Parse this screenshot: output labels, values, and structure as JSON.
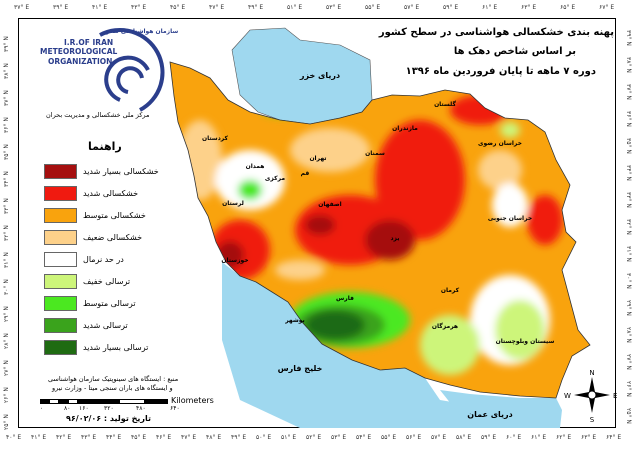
{
  "title": {
    "line1": "پهنه بندی خشکسالی هواشناسی در سطح کشور",
    "line2": "بر اساس شاخص  دهک ها",
    "line3": "دوره ۷ ماهه تا پایان فروردین ماه ۱۳۹۶"
  },
  "logo": {
    "fa_org": "سازمان هواشناسی کشور",
    "en_line1": "I.R.OF IRAN",
    "en_line2": "METEOROLOGICAL",
    "en_line3": "ORGANIZATION",
    "center": "مرکز ملی خشکسالی و مدیریت بحران"
  },
  "legend": {
    "title": "راهنما",
    "items": [
      {
        "label": "خشکسالی بسیار شدید",
        "color": "#a50f0f"
      },
      {
        "label": "خشکسالی شدید",
        "color": "#f01a10"
      },
      {
        "label": "خشکسالی متوسط",
        "color": "#f9a30d"
      },
      {
        "label": "خشکسالی ضعیف",
        "color": "#fdd18a"
      },
      {
        "label": "در حد نرمال",
        "color": "#ffffff"
      },
      {
        "label": "ترسالی خفیف",
        "color": "#cdf57a"
      },
      {
        "label": "ترسالی متوسط",
        "color": "#4be820"
      },
      {
        "label": "ترسالی شدید",
        "color": "#3aa31c"
      },
      {
        "label": "ترسالی بسیار شدید",
        "color": "#1f6b12"
      }
    ]
  },
  "source": {
    "line1": "منبع : ایستگاه های سینوپتیک سازمان هواشناسی",
    "line2": "و ایستگاه های باران سنجی میتا - وزارت نیرو"
  },
  "scale_bar": {
    "unit": "Kilometers",
    "ticks": [
      "۰",
      "۸۰",
      "۱۶۰",
      "۳۲۰",
      "۴۸۰",
      "۶۴۰"
    ]
  },
  "production_date": "تاریخ تولید : ۹۶/۰۲/۰۶",
  "water_labels": {
    "caspian": "دریای خزر",
    "persian_gulf": "خلیج فارس",
    "oman_sea": "دریای عمان"
  },
  "compass": {
    "n": "N",
    "s": "S",
    "e": "E",
    "w": "W"
  },
  "province_labels": [
    "تهران",
    "قم",
    "سمنان",
    "اصفهان",
    "یزد",
    "کرمان",
    "فارس",
    "هرمزگان",
    "بوشهر",
    "خوزستان",
    "همدان",
    "مرکزی",
    "خراسان رضوی",
    "خراسان جنوبی",
    "سیستان وبلوچستان",
    "گلستان",
    "مازندران",
    "کردستان",
    "لرستان"
  ],
  "axes": {
    "top": [
      "۳۷° E",
      "۳۹° E",
      "۴۱° E",
      "۴۳° E",
      "۴۵° E",
      "۴۷° E",
      "۴۹° E",
      "۵۱° E",
      "۵۳° E",
      "۵۵° E",
      "۵۷° E",
      "۵۹° E",
      "۶۱° E",
      "۶۳° E",
      "۶۵° E",
      "۶۷° E"
    ],
    "bottom": [
      "۴۰° E",
      "۴۱° E",
      "۴۲° E",
      "۴۳° E",
      "۴۴° E",
      "۴۵° E",
      "۴۶° E",
      "۴۷° E",
      "۴۸° E",
      "۴۹° E",
      "۵۰° E",
      "۵۱° E",
      "۵۲° E",
      "۵۳° E",
      "۵۴° E",
      "۵۵° E",
      "۵۶° E",
      "۵۷° E",
      "۵۸° E",
      "۵۹° E",
      "۶۰° E",
      "۶۱° E",
      "۶۲° E",
      "۶۳° E",
      "۶۴° E"
    ],
    "left": [
      "۳۹° N",
      "۳۸° N",
      "۳۷° N",
      "۳۶° N",
      "۳۵° N",
      "۳۴° N",
      "۳۳° N",
      "۳۲° N",
      "۳۱° N",
      "۳۰° N",
      "۲۹° N",
      "۲۸° N",
      "۲۷° N",
      "۲۶° N",
      "۲۵° N"
    ],
    "right": [
      "۳۹° N",
      "۳۸° N",
      "۳۷° N",
      "۳۶° N",
      "۳۵° N",
      "۳۴° N",
      "۳۳° N",
      "۳۲° N",
      "۳۱° N",
      "۳۰° N",
      "۲۹° N",
      "۲۸° N",
      "۲۷° N",
      "۲۶° N",
      "۲۵° N"
    ]
  },
  "colors": {
    "water": "#9fd8ef",
    "frame": "#000000",
    "logo": "#2b3e8c"
  }
}
